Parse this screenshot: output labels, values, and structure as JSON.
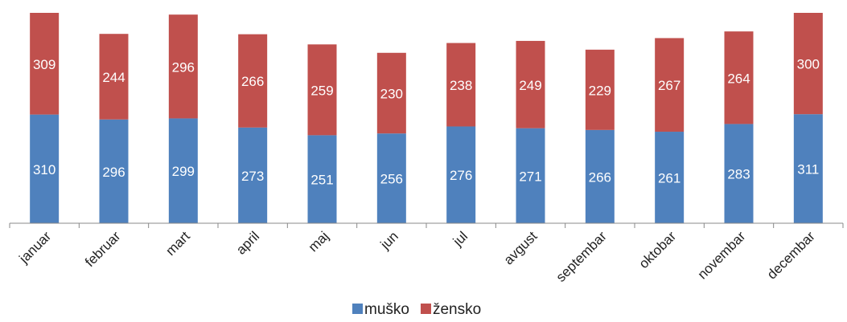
{
  "chart_data": {
    "type": "stacked_bar",
    "categories": [
      "januar",
      "februar",
      "mart",
      "april",
      "maj",
      "jun",
      "jul",
      "avgust",
      "septembar",
      "oktobar",
      "novembar",
      "decembar"
    ],
    "series": [
      {
        "name": "muško",
        "color": "#4f81bd",
        "values": [
          310,
          296,
          299,
          273,
          251,
          256,
          276,
          271,
          266,
          261,
          283,
          311
        ]
      },
      {
        "name": "žensko",
        "color": "#c0504d",
        "values": [
          309,
          244,
          296,
          266,
          259,
          230,
          238,
          249,
          229,
          267,
          264,
          300
        ]
      }
    ],
    "ylim": [
      0,
      600
    ]
  }
}
